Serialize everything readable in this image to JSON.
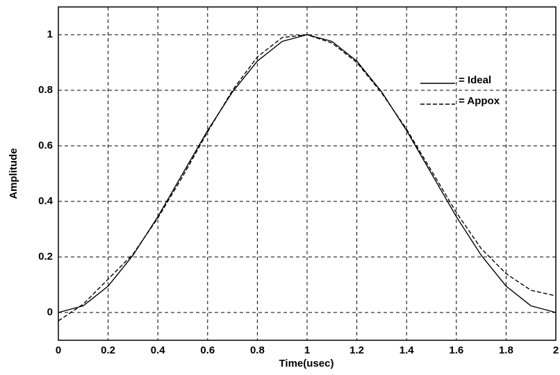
{
  "chart_data": {
    "type": "line",
    "x_label": "Time(usec)",
    "y_label": "Amplitude",
    "x": [
      0,
      0.1,
      0.2,
      0.3,
      0.4,
      0.5,
      0.6,
      0.7,
      0.8,
      0.9,
      1,
      1.1,
      1.2,
      1.3,
      1.4,
      1.5,
      1.6,
      1.7,
      1.8,
      1.9,
      2
    ],
    "series": [
      {
        "name": "= Ideal",
        "color": "#000000",
        "dash": "solid",
        "values": [
          0,
          0.024,
          0.095,
          0.206,
          0.345,
          0.5,
          0.655,
          0.794,
          0.905,
          0.976,
          1,
          0.976,
          0.905,
          0.794,
          0.655,
          0.5,
          0.345,
          0.206,
          0.095,
          0.024,
          0
        ]
      },
      {
        "name": "= Appox",
        "color": "#000000",
        "dash": "dashed",
        "values": [
          -0.03,
          0.03,
          0.12,
          0.21,
          0.34,
          0.49,
          0.65,
          0.8,
          0.92,
          0.99,
          1,
          0.97,
          0.9,
          0.79,
          0.66,
          0.51,
          0.36,
          0.23,
          0.14,
          0.08,
          0.06
        ]
      }
    ],
    "xlim": [
      0,
      2
    ],
    "ylim": [
      -0.1,
      1.1
    ],
    "xticks": [
      0,
      0.2,
      0.4,
      0.6,
      0.8,
      1,
      1.2,
      1.4,
      1.6,
      1.8,
      2
    ],
    "yticks": [
      0,
      0.2,
      0.4,
      0.6,
      0.8,
      1
    ],
    "grid": true,
    "legend": "upper right"
  }
}
